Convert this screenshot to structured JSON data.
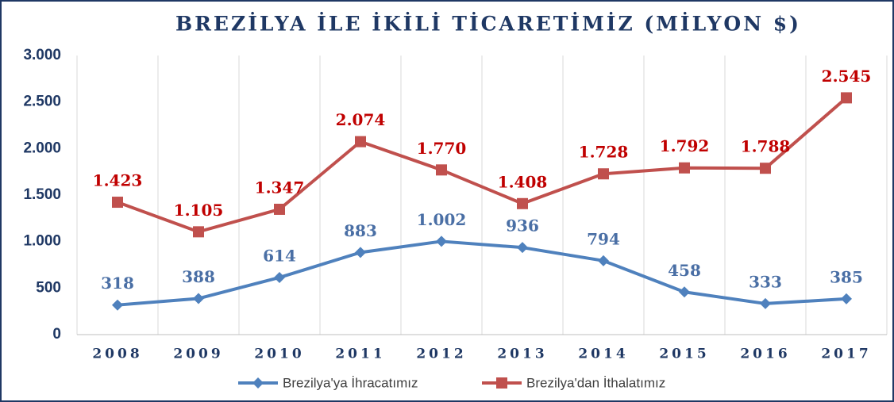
{
  "chart_data": {
    "type": "line",
    "title": "BREZİLYA İLE İKİLİ TİCARETİMİZ (MİLYON $)",
    "categories": [
      "2008",
      "2009",
      "2010",
      "2011",
      "2012",
      "2013",
      "2014",
      "2015",
      "2016",
      "2017"
    ],
    "series": [
      {
        "name": "Brezilya'ya İhracatımız",
        "color": "#4f81bd",
        "marker": "diamond",
        "values": [
          318,
          388,
          614,
          883,
          1002,
          936,
          794,
          458,
          333,
          385
        ],
        "value_labels": [
          "318",
          "388",
          "614",
          "883",
          "1.002",
          "936",
          "794",
          "458",
          "333",
          "385"
        ]
      },
      {
        "name": "Brezilya'dan İthalatımız",
        "color": "#c0504d",
        "marker": "square",
        "values": [
          1423,
          1105,
          1347,
          2074,
          1770,
          1408,
          1728,
          1792,
          1788,
          2545
        ],
        "value_labels": [
          "1.423",
          "1.105",
          "1.347",
          "2.074",
          "1.770",
          "1.408",
          "1.728",
          "1.792",
          "1.788",
          "2.545"
        ]
      }
    ],
    "ylim": [
      0,
      3000
    ],
    "yticks": [
      0,
      500,
      {
        "value": 1000,
        "label": "1.000"
      },
      {
        "value": 1500,
        "label": "1.500"
      },
      {
        "value": 2000,
        "label": "2.000"
      },
      {
        "value": 2500,
        "label": "2.500"
      },
      {
        "value": 3000,
        "label": "3.000"
      }
    ],
    "legend": "bottom"
  }
}
